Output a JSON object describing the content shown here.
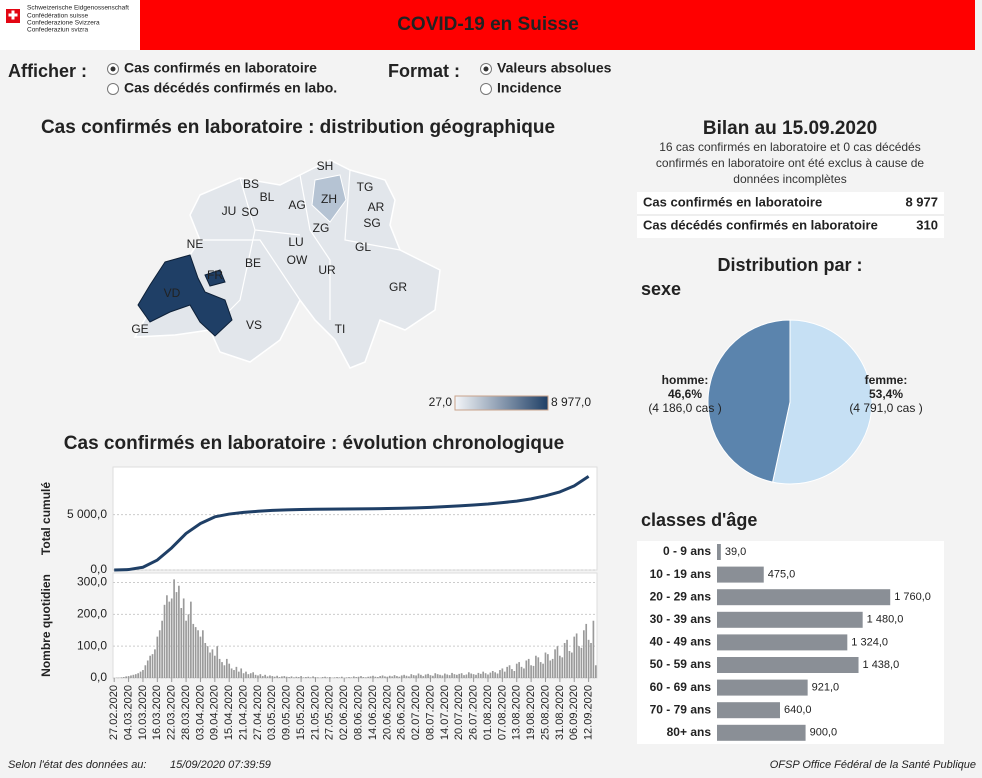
{
  "header": {
    "logo_lines": [
      "Schweizerische Eidgenossenschaft",
      "Confédération suisse",
      "Confederazione Svizzera",
      "Confederaziun svizra"
    ],
    "title": "COVID-19 en Suisse"
  },
  "controls": [
    {
      "label": "Afficher :",
      "options": [
        "Cas confirmés en laboratoire",
        "Cas décédés confirmés en labo."
      ],
      "selected": 0
    },
    {
      "label": "Format :",
      "options": [
        "Valeurs absolues",
        "Incidence"
      ],
      "selected": 0
    }
  ],
  "map": {
    "title": "Cas confirmés en laboratoire : distribution géographique",
    "cantons": [
      "SH",
      "BS",
      "BL",
      "SO",
      "JU",
      "AG",
      "ZH",
      "TG",
      "AR",
      "SG",
      "ZG",
      "NE",
      "LU",
      "GL",
      "OW",
      "FR",
      "BE",
      "UR",
      "GR",
      "VD",
      "VS",
      "TI",
      "GE"
    ],
    "colorbar": {
      "min": {
        "value": 27,
        "label": "27,0"
      },
      "max": {
        "value": 8977,
        "label": "8 977,0"
      }
    }
  },
  "bilan": {
    "title": "Bilan au 15.09.2020",
    "note": "16 cas confirmés en laboratoire et 0 cas décédés confirmés en laboratoire ont été exclus à cause de données incomplètes",
    "rows": [
      [
        "Cas confirmés en laboratoire",
        "8 977"
      ],
      [
        "Cas décédés confirmés en laboratoire",
        "310"
      ]
    ],
    "distribution_title": "Distribution par :"
  },
  "footer": {
    "left_label": "Selon l'état des données au:",
    "timestamp": "15/09/2020 07:39:59",
    "right": "OFSP Office Fédéral de la Santé Publique"
  },
  "chart_data": [
    {
      "type": "pie",
      "title": "sexe",
      "categories": [
        "homme:",
        "femme:"
      ],
      "values": [
        46.6,
        53.4
      ],
      "value_labels": [
        "46,6%",
        "53,4%"
      ],
      "case_labels": [
        "(4 186,0 cas )",
        "(4 791,0 cas )"
      ],
      "colors": [
        "#5b84ad",
        "#c6e0f4"
      ]
    },
    {
      "type": "hbar",
      "title": "classes d'âge",
      "categories": [
        "0 - 9 ans",
        "10 - 19 ans",
        "20 - 29 ans",
        "30 - 39 ans",
        "40 - 49 ans",
        "50 - 59 ans",
        "60 - 69 ans",
        "70 - 79 ans",
        "80+ ans"
      ],
      "values": [
        39,
        475,
        1760,
        1480,
        1324,
        1438,
        921,
        640,
        900
      ],
      "value_labels": [
        "39,0",
        "475,0",
        "1 760,0",
        "1 480,0",
        "1 324,0",
        "1 438,0",
        "921,0",
        "640,0",
        "900,0"
      ],
      "color": "#8a8f96",
      "xlim": [
        0,
        1900
      ]
    },
    {
      "type": "line_bar",
      "title": "Cas confirmés en laboratoire : évolution chronologique",
      "categories": [
        "27.02.2020",
        null,
        null,
        null,
        null,
        null,
        "04.03.2020",
        null,
        null,
        null,
        null,
        null,
        "10.03.2020",
        null,
        null,
        null,
        null,
        null,
        "16.03.2020",
        null,
        null,
        null,
        null,
        null,
        "22.03.2020",
        null,
        null,
        null,
        null,
        null,
        "28.03.2020",
        null,
        null,
        null,
        null,
        null,
        "03.04.2020",
        null,
        null,
        null,
        null,
        null,
        "09.04.2020",
        null,
        null,
        null,
        null,
        null,
        "15.04.2020",
        null,
        null,
        null,
        null,
        null,
        "21.04.2020",
        null,
        null,
        null,
        null,
        null,
        "27.04.2020",
        null,
        null,
        null,
        null,
        null,
        "03.05.2020",
        null,
        null,
        null,
        null,
        null,
        "09.05.2020",
        null,
        null,
        null,
        null,
        null,
        "15.05.2020",
        null,
        null,
        null,
        null,
        null,
        "21.05.2020",
        null,
        null,
        null,
        null,
        null,
        "27.05.2020",
        null,
        null,
        null,
        null,
        null,
        "02.06.2020",
        null,
        null,
        null,
        null,
        null,
        "08.06.2020",
        null,
        null,
        null,
        null,
        null,
        "14.06.2020",
        null,
        null,
        null,
        null,
        null,
        "20.06.2020",
        null,
        null,
        null,
        null,
        null,
        "26.06.2020",
        null,
        null,
        null,
        null,
        null,
        "02.07.2020",
        null,
        null,
        null,
        null,
        null,
        "08.07.2020",
        null,
        null,
        null,
        null,
        null,
        "14.07.2020",
        null,
        null,
        null,
        null,
        null,
        "20.07.2020",
        null,
        null,
        null,
        null,
        null,
        "26.07.2020",
        null,
        null,
        null,
        null,
        null,
        "01.08.2020",
        null,
        null,
        null,
        null,
        null,
        "07.08.2020",
        null,
        null,
        null,
        null,
        null,
        "13.08.2020",
        null,
        null,
        null,
        null,
        null,
        "19.08.2020",
        null,
        null,
        null,
        null,
        null,
        "25.08.2020",
        null,
        null,
        null,
        null,
        null,
        "31.08.2020",
        null,
        null,
        null,
        null,
        null,
        "06.09.2020",
        null,
        null,
        null,
        null,
        null,
        "12.09.2020",
        null,
        null,
        null
      ],
      "cumulative": {
        "ylabel": "Total cumulé",
        "color": "#1f3f66",
        "ylim": [
          0,
          9300
        ],
        "yticks": [
          {
            "value": 0,
            "label": "0,0"
          },
          {
            "value": 5000,
            "label": "5 000,0"
          }
        ],
        "x": [
          "27.02.2020",
          "04.03.2020",
          "10.03.2020",
          "16.03.2020",
          "22.03.2020",
          "28.03.2020",
          "03.04.2020",
          "09.04.2020",
          "15.04.2020",
          "21.04.2020",
          "27.04.2020",
          "03.05.2020",
          "09.05.2020",
          "15.05.2020",
          "21.05.2020",
          "27.05.2020",
          "02.06.2020",
          "08.06.2020",
          "14.06.2020",
          "20.06.2020",
          "26.06.2020",
          "02.07.2020",
          "08.07.2020",
          "14.07.2020",
          "20.07.2020",
          "26.07.2020",
          "01.08.2020",
          "07.08.2020",
          "13.08.2020",
          "19.08.2020",
          "25.08.2020",
          "31.08.2020",
          "06.09.2020",
          "12.09.2020"
        ],
        "values": [
          0,
          40,
          250,
          900,
          2000,
          3300,
          4200,
          4800,
          5050,
          5200,
          5300,
          5380,
          5430,
          5460,
          5480,
          5500,
          5510,
          5520,
          5535,
          5550,
          5570,
          5610,
          5660,
          5720,
          5790,
          5870,
          5960,
          6080,
          6220,
          6420,
          6700,
          7050,
          7600,
          8450
        ]
      },
      "daily": {
        "ylabel": "Nombre quotidien",
        "color": "#9a9a9a",
        "ylim": [
          0,
          330
        ],
        "yticks": [
          {
            "value": 0,
            "label": "0,0"
          },
          {
            "value": 100,
            "label": "100,0"
          },
          {
            "value": 200,
            "label": "200,0"
          },
          {
            "value": 300,
            "label": "300,0"
          }
        ],
        "values": [
          0,
          1,
          1,
          2,
          3,
          5,
          6,
          8,
          10,
          12,
          15,
          20,
          25,
          40,
          55,
          70,
          75,
          90,
          130,
          150,
          180,
          230,
          260,
          240,
          250,
          310,
          270,
          290,
          220,
          250,
          180,
          200,
          240,
          170,
          160,
          150,
          130,
          150,
          110,
          100,
          80,
          90,
          70,
          100,
          60,
          50,
          40,
          60,
          45,
          30,
          25,
          35,
          20,
          30,
          15,
          20,
          12,
          15,
          18,
          10,
          8,
          12,
          6,
          10,
          5,
          8,
          6,
          4,
          7,
          3,
          5,
          6,
          4,
          3,
          5,
          2,
          4,
          3,
          6,
          2,
          3,
          4,
          2,
          5,
          3,
          2,
          1,
          3,
          4,
          2,
          3,
          1,
          2,
          3,
          2,
          4,
          1,
          2,
          3,
          2,
          5,
          3,
          4,
          6,
          3,
          2,
          4,
          5,
          7,
          4,
          3,
          6,
          8,
          5,
          4,
          7,
          5,
          9,
          6,
          4,
          8,
          10,
          7,
          5,
          12,
          9,
          8,
          14,
          10,
          6,
          11,
          13,
          9,
          7,
          15,
          12,
          10,
          8,
          14,
          11,
          9,
          16,
          12,
          10,
          13,
          15,
          9,
          11,
          18,
          14,
          12,
          10,
          16,
          13,
          20,
          15,
          11,
          17,
          22,
          18,
          14,
          25,
          30,
          20,
          35,
          40,
          28,
          22,
          45,
          50,
          35,
          30,
          55,
          60,
          40,
          38,
          70,
          65,
          50,
          45,
          80,
          75,
          55,
          60,
          90,
          100,
          70,
          65,
          110,
          120,
          85,
          80,
          130,
          140,
          100,
          95,
          150,
          170,
          120,
          110,
          180,
          40
        ]
      }
    }
  ]
}
